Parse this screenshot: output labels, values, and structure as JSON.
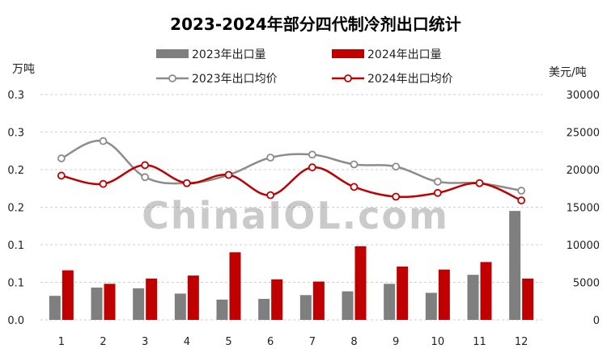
{
  "chart_data": {
    "type": "bar",
    "title": "2023-2024年部分四代制冷剂出口统计",
    "ylabel_left": "万吨",
    "ylabel_right": "美元/吨",
    "categories": [
      "1",
      "2",
      "3",
      "4",
      "5",
      "6",
      "7",
      "8",
      "9",
      "10",
      "11",
      "12"
    ],
    "left_ticks": [
      "0.0",
      "0.1",
      "0.1",
      "0.2",
      "0.2",
      "0.3",
      "0.3"
    ],
    "right_ticks": [
      "0",
      "5000",
      "10000",
      "15000",
      "20000",
      "25000",
      "30000"
    ],
    "ylim_left": [
      0,
      0.3
    ],
    "ylim_right": [
      0,
      30000
    ],
    "series": [
      {
        "name": "2023年出口量",
        "kind": "bar",
        "axis": "left",
        "color": "#7f7f7f",
        "values": [
          0.032,
          0.043,
          0.042,
          0.035,
          0.027,
          0.028,
          0.033,
          0.038,
          0.048,
          0.036,
          0.06,
          0.145
        ]
      },
      {
        "name": "2024年出口量",
        "kind": "bar",
        "axis": "left",
        "color": "#c00000",
        "values": [
          0.066,
          0.048,
          0.055,
          0.059,
          0.09,
          0.054,
          0.051,
          0.098,
          0.071,
          0.067,
          0.077,
          0.055
        ]
      },
      {
        "name": "2023年出口均价",
        "kind": "line",
        "axis": "right",
        "color": "#8c8c8c",
        "values": [
          21500,
          23800,
          19000,
          18200,
          19300,
          21600,
          22000,
          20700,
          20400,
          18400,
          18200,
          17200
        ]
      },
      {
        "name": "2024年出口均价",
        "kind": "line",
        "axis": "right",
        "color": "#c00000",
        "values": [
          19200,
          18100,
          20600,
          18200,
          19300,
          16600,
          20300,
          17700,
          16400,
          16900,
          18200,
          15900
        ]
      }
    ],
    "legend_position": "top",
    "grid": true
  },
  "watermark": "ChinaIOL.com"
}
